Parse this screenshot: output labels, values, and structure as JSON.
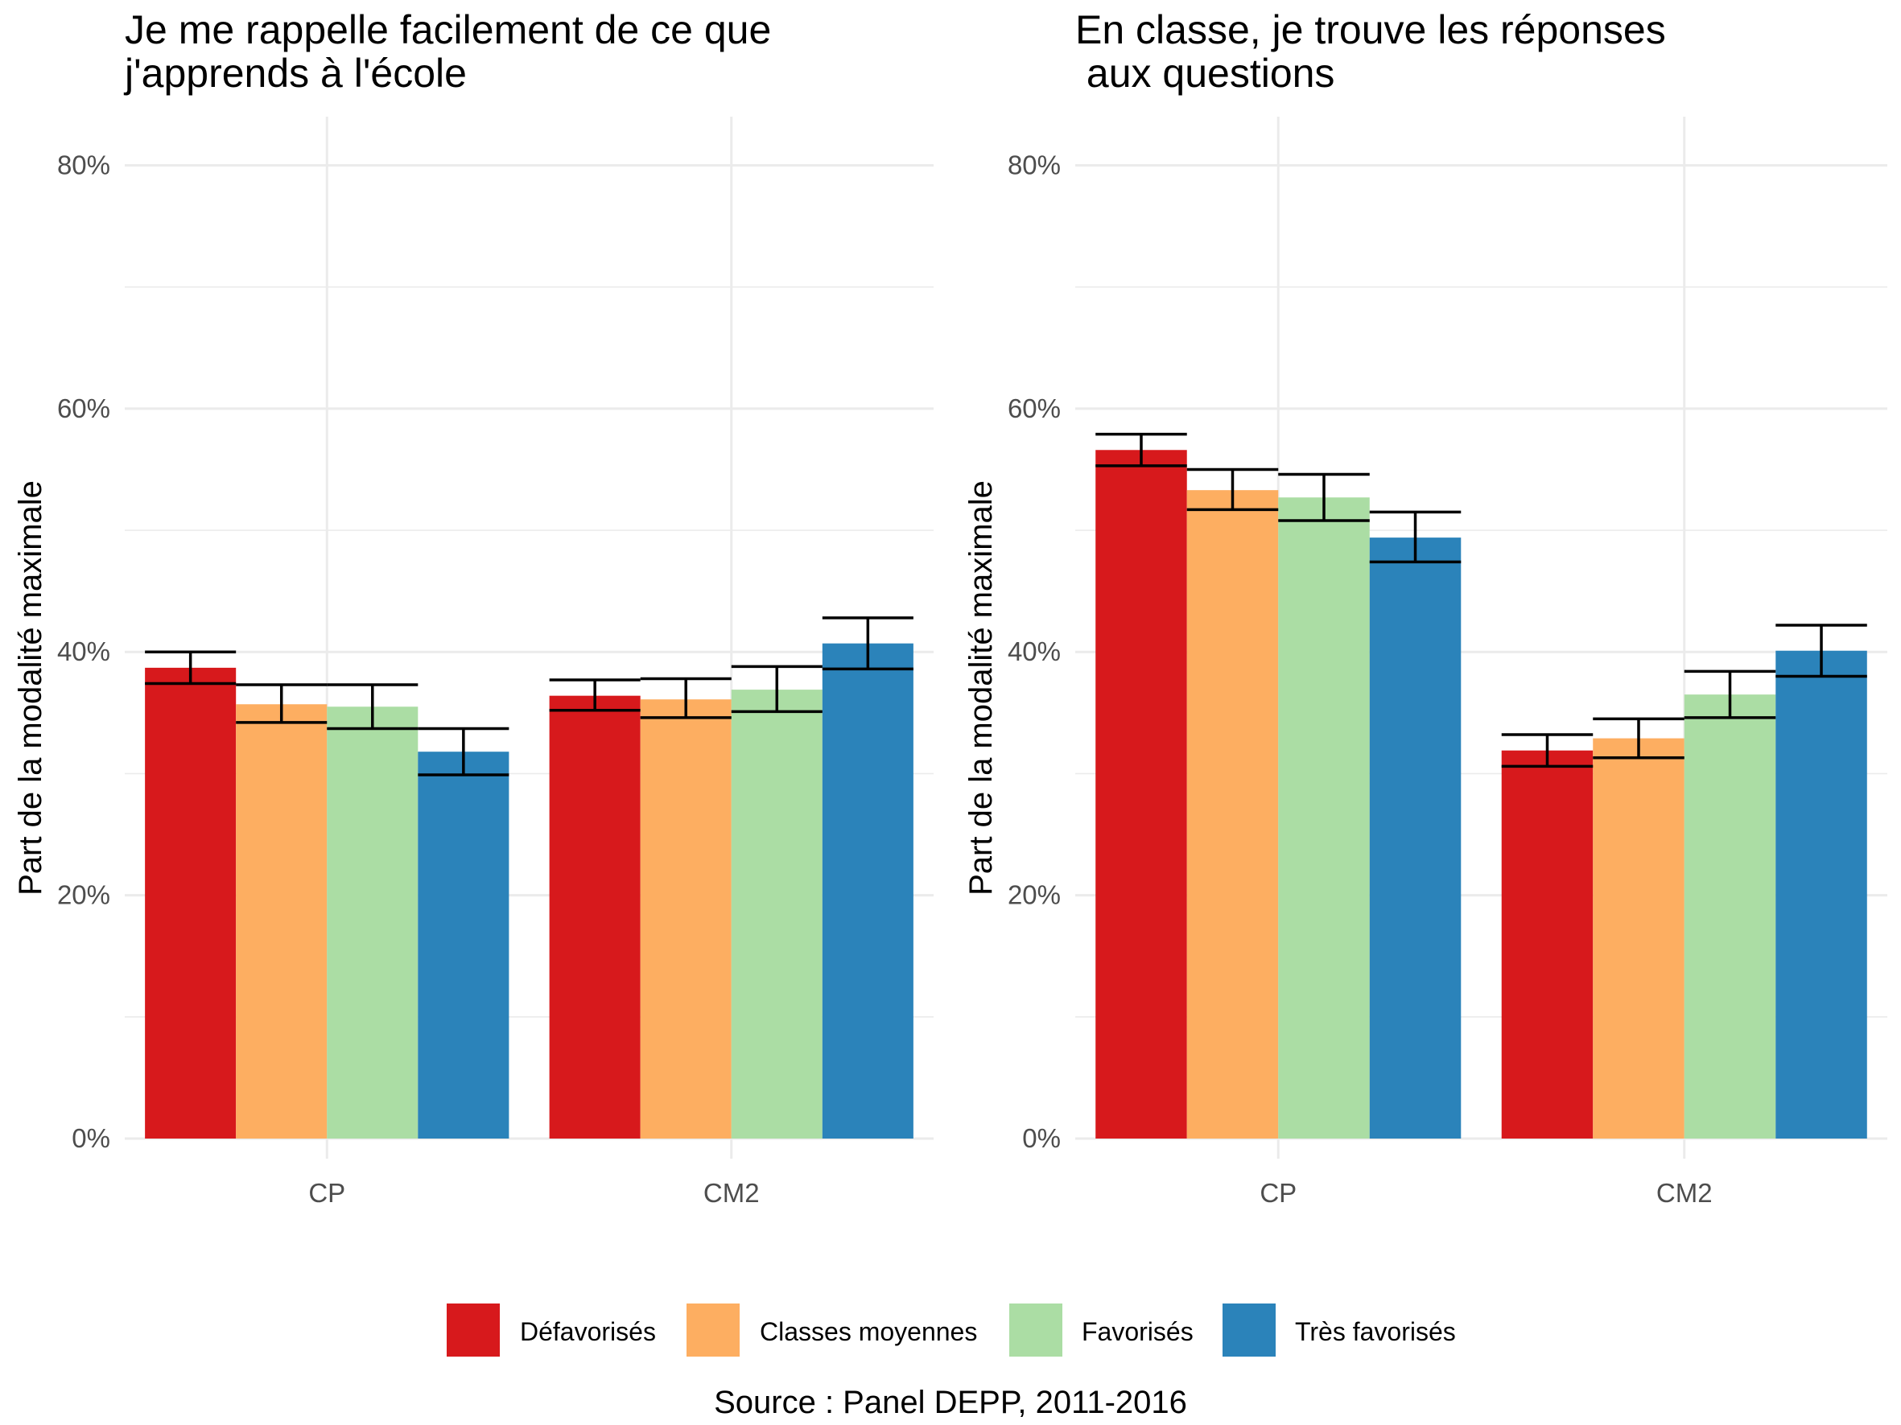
{
  "chart_data": {
    "type": "bar",
    "caption": "Source : Panel DEPP, 2011-2016",
    "legend": {
      "position": "bottom",
      "entries": [
        "Défavorisés",
        "Classes moyennes",
        "Favorisés",
        "Très favorisés"
      ]
    },
    "colors": [
      "#d7191c",
      "#fdae61",
      "#abdda4",
      "#2b83ba"
    ],
    "grid": true,
    "panels": [
      {
        "title_lines": [
          "Je me rappelle facilement de ce que",
          "j'apprends à l'école"
        ],
        "ylabel": "Part de la modalité maximale",
        "xlabel": "",
        "ylim": [
          0,
          0.84
        ],
        "yticks": [
          "0%",
          "20%",
          "40%",
          "60%",
          "80%"
        ],
        "categories": [
          "CP",
          "CM2"
        ],
        "series": [
          {
            "name": "Défavorisés",
            "values": [
              0.387,
              0.364
            ],
            "err_low": [
              0.374,
              0.352
            ],
            "err_high": [
              0.4,
              0.377
            ]
          },
          {
            "name": "Classes moyennes",
            "values": [
              0.357,
              0.361
            ],
            "err_low": [
              0.342,
              0.346
            ],
            "err_high": [
              0.373,
              0.378
            ]
          },
          {
            "name": "Favorisés",
            "values": [
              0.355,
              0.369
            ],
            "err_low": [
              0.337,
              0.351
            ],
            "err_high": [
              0.373,
              0.388
            ]
          },
          {
            "name": "Très favorisés",
            "values": [
              0.318,
              0.407
            ],
            "err_low": [
              0.299,
              0.386
            ],
            "err_high": [
              0.337,
              0.428
            ]
          }
        ]
      },
      {
        "title_lines": [
          "En classe, je trouve les réponses",
          " aux questions"
        ],
        "ylabel": "Part de la modalité maximale",
        "xlabel": "",
        "ylim": [
          0,
          0.84
        ],
        "yticks": [
          "0%",
          "20%",
          "40%",
          "60%",
          "80%"
        ],
        "categories": [
          "CP",
          "CM2"
        ],
        "series": [
          {
            "name": "Défavorisés",
            "values": [
              0.566,
              0.319
            ],
            "err_low": [
              0.553,
              0.306
            ],
            "err_high": [
              0.579,
              0.332
            ]
          },
          {
            "name": "Classes moyennes",
            "values": [
              0.533,
              0.329
            ],
            "err_low": [
              0.517,
              0.313
            ],
            "err_high": [
              0.55,
              0.345
            ]
          },
          {
            "name": "Favorisés",
            "values": [
              0.527,
              0.365
            ],
            "err_low": [
              0.508,
              0.346
            ],
            "err_high": [
              0.546,
              0.384
            ]
          },
          {
            "name": "Très favorisés",
            "values": [
              0.494,
              0.401
            ],
            "err_low": [
              0.474,
              0.38
            ],
            "err_high": [
              0.515,
              0.422
            ]
          }
        ]
      }
    ]
  }
}
